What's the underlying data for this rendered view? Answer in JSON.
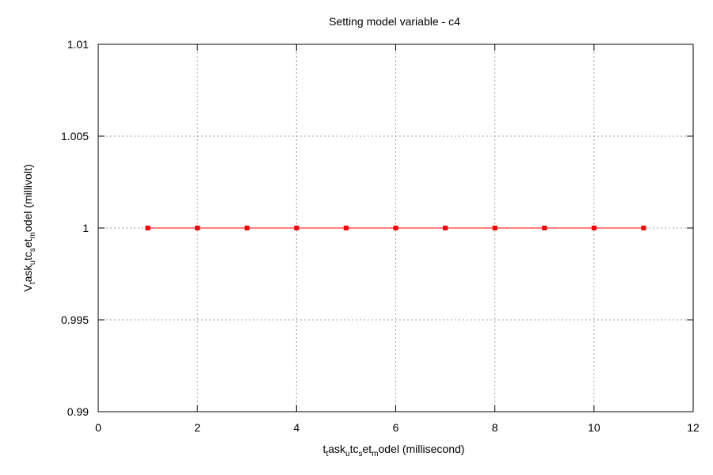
{
  "chart_data": {
    "type": "line",
    "title": "Setting model variable - c4",
    "xlabel": {
      "parts": [
        {
          "text": "t",
          "sub": false
        },
        {
          "text": "t",
          "sub": true
        },
        {
          "text": "ask",
          "sub": false
        },
        {
          "text": "u",
          "sub": true
        },
        {
          "text": "tc",
          "sub": false
        },
        {
          "text": "s",
          "sub": true
        },
        {
          "text": "et",
          "sub": false
        },
        {
          "text": "m",
          "sub": true
        },
        {
          "text": "odel (millisecond)",
          "sub": false
        }
      ]
    },
    "ylabel": {
      "parts": [
        {
          "text": "V",
          "sub": false
        },
        {
          "text": "t",
          "sub": true
        },
        {
          "text": "ask",
          "sub": false
        },
        {
          "text": "u",
          "sub": true
        },
        {
          "text": "tc",
          "sub": false
        },
        {
          "text": "s",
          "sub": true
        },
        {
          "text": "et",
          "sub": false
        },
        {
          "text": "m",
          "sub": true
        },
        {
          "text": "odel (millivolt)",
          "sub": false
        }
      ]
    },
    "xlim": [
      0,
      12
    ],
    "ylim": [
      0.99,
      1.01
    ],
    "xticks": [
      0,
      2,
      4,
      6,
      8,
      10,
      12
    ],
    "xtick_labels": [
      "0",
      "2",
      "4",
      "6",
      "8",
      "10",
      "12"
    ],
    "yticks": [
      0.99,
      0.995,
      1,
      1.005,
      1.01
    ],
    "ytick_labels": [
      "0.99",
      "0.995",
      "1",
      "1.005",
      "1.01"
    ],
    "grid": true,
    "series": [
      {
        "color": "#ff0000",
        "marker": "square",
        "x": [
          1,
          2,
          3,
          4,
          5,
          6,
          7,
          8,
          9,
          10,
          11
        ],
        "y": [
          1,
          1,
          1,
          1,
          1,
          1,
          1,
          1,
          1,
          1,
          1
        ]
      }
    ]
  }
}
